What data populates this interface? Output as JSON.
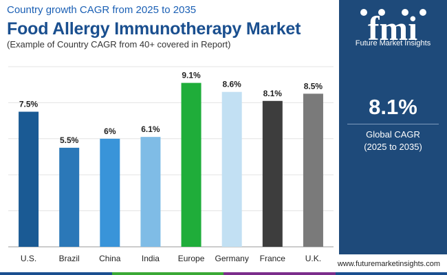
{
  "header": {
    "subtitle": "Country growth CAGR from 2025 to 2035",
    "title": "Food Allergy Immunotherapy Market",
    "note": "(Example of Country CAGR from 40+ covered in Report)"
  },
  "sidebar": {
    "logo_text": "Future Market Insights",
    "logo_letters": "fmi",
    "cagr_value": "8.1%",
    "cagr_label": "Global CAGR",
    "cagr_period": "(2025 to 2035)"
  },
  "footer": {
    "website": "www.futuremarketinsights.com"
  },
  "colors": {
    "panel": "#1e4a7a",
    "grid": "#e3e3e3",
    "strip": [
      "#1a4f8f",
      "#3aa935",
      "#7b2d8b",
      "#1a4f8f"
    ]
  },
  "chart_data": {
    "type": "bar",
    "categories": [
      "U.S.",
      "Brazil",
      "China",
      "India",
      "Europe",
      "Germany",
      "France",
      "U.K."
    ],
    "values": [
      7.5,
      5.5,
      6,
      6.1,
      9.1,
      8.6,
      8.1,
      8.5
    ],
    "value_labels": [
      "7.5%",
      "5.5%",
      "6%",
      "6.1%",
      "9.1%",
      "8.6%",
      "8.1%",
      "8.5%"
    ],
    "colors": [
      "#1a5a94",
      "#2b78b8",
      "#3994d9",
      "#7fbce6",
      "#1fad3a",
      "#c2e0f3",
      "#3d3d3d",
      "#7a7a7a"
    ],
    "ylim": [
      0,
      10
    ],
    "grid": true,
    "xlabel": "",
    "ylabel": ""
  }
}
